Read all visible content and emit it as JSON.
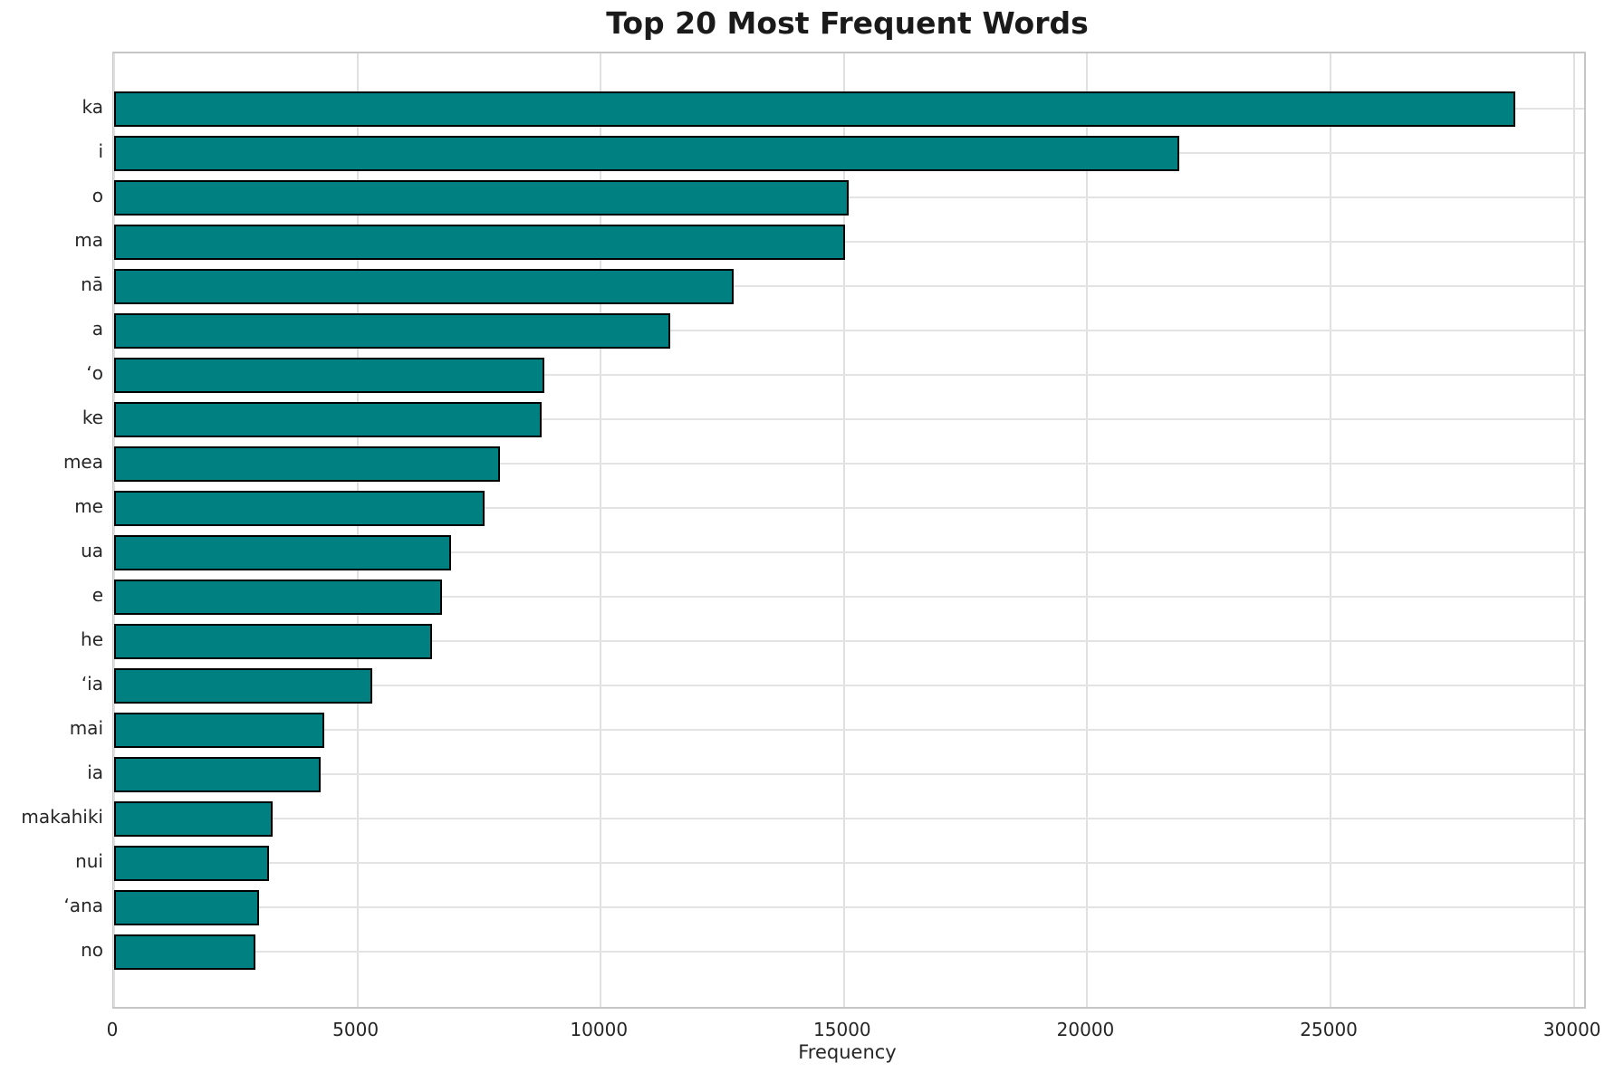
{
  "chart_data": {
    "type": "bar",
    "orientation": "horizontal",
    "title": "Top 20 Most Frequent Words",
    "xlabel": "Frequency",
    "ylabel": "",
    "categories": [
      "ka",
      "i",
      "o",
      "ma",
      "nā",
      "a",
      "ʻo",
      "ke",
      "mea",
      "me",
      "ua",
      "e",
      "he",
      "ʻia",
      "mai",
      "ia",
      "makahiki",
      "nui",
      "ʻana",
      "no"
    ],
    "values": [
      28790,
      21890,
      15090,
      15030,
      12740,
      11430,
      8850,
      8790,
      7930,
      7620,
      6930,
      6740,
      6540,
      5310,
      4320,
      4240,
      3260,
      3190,
      2970,
      2900
    ],
    "xticks": [
      0,
      5000,
      10000,
      15000,
      20000,
      25000,
      30000
    ],
    "xtick_labels": [
      "0",
      "5000",
      "10000",
      "15000",
      "20000",
      "25000",
      "30000"
    ],
    "xlim": [
      0,
      30210
    ],
    "grid": true,
    "legend": false,
    "bar_color": "#008080",
    "bar_edge_color": "#000000",
    "grid_color": "#e0e0e0",
    "spine_color": "#c6c6c6",
    "text_color": "#262626"
  }
}
